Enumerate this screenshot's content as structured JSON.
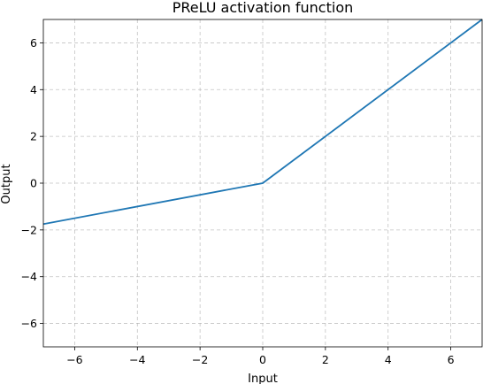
{
  "chart_data": {
    "type": "line",
    "title": "PReLU activation function",
    "xlabel": "Input",
    "ylabel": "Output",
    "xlim": [
      -7,
      7
    ],
    "ylim": [
      -7,
      7
    ],
    "xticks": [
      -6,
      -4,
      -2,
      0,
      2,
      4,
      6
    ],
    "yticks": [
      -6,
      -4,
      -2,
      0,
      2,
      4,
      6
    ],
    "xtick_labels": [
      "−6",
      "−4",
      "−2",
      "0",
      "2",
      "4",
      "6"
    ],
    "ytick_labels": [
      "−6",
      "−4",
      "−2",
      "0",
      "2",
      "4",
      "6"
    ],
    "grid": true,
    "series": [
      {
        "color": "#1f77b4",
        "x": [
          -7,
          0,
          7
        ],
        "y": [
          -1.75,
          0,
          7
        ]
      }
    ]
  }
}
